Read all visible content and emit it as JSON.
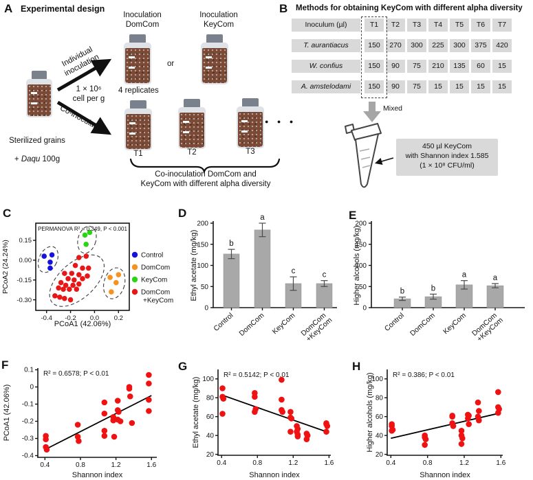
{
  "panels": {
    "a": {
      "label": "A",
      "title": "Experimental design",
      "inoc_domcom": "Inoculation\nDomCom",
      "inoc_keycom": "Inoculation\nKeyCom",
      "or_label": "or",
      "replicates": "4 replicates",
      "individual_arrow_label": "Individual\ninoculation",
      "dose_label": "1 × 10⁶\ncell per g",
      "co_arrow_label": "Co-inoculation",
      "sterilized_line1": "Sterilized grains",
      "sterilized_prefix": "+ ",
      "sterilized_daqu": "Daqu",
      "sterilized_suffix": " 100g",
      "jar_labels": [
        "T1",
        "T2",
        "T3"
      ],
      "ellipsis": "● ● ●",
      "brace_caption": "Co-inoculation DomCom and\nKeyCom with different alpha diversity"
    },
    "b": {
      "label": "B",
      "title": "Methods for obtaining KeyCom with different alpha diversity",
      "table": {
        "header": [
          "Inoculum (µl)",
          "T1",
          "T2",
          "T3",
          "T4",
          "T5",
          "T6",
          "T7"
        ],
        "rows": [
          {
            "name": "T. aurantiacus",
            "values": [
              "150",
              "270",
              "300",
              "225",
              "300",
              "375",
              "420"
            ]
          },
          {
            "name": "W. confius",
            "values": [
              "150",
              "90",
              "75",
              "210",
              "135",
              "60",
              "15"
            ]
          },
          {
            "name": "A. amstelodami",
            "values": [
              "150",
              "90",
              "75",
              "15",
              "15",
              "15",
              "15"
            ]
          }
        ]
      },
      "mixed_label": "Mixed",
      "note_lines": [
        "450 µl KeyCom",
        "with Shannon index 1.585",
        "(1 × 10⁸ CFU/ml)"
      ]
    },
    "c": {
      "label": "C"
    },
    "d": {
      "label": "D"
    },
    "e": {
      "label": "E"
    },
    "f": {
      "label": "F"
    },
    "g": {
      "label": "G"
    },
    "h": {
      "label": "H"
    }
  },
  "colors": {
    "control_blue": "#1412dc",
    "domcom_orange": "#f6921e",
    "keycom_green": "#2bd415",
    "mix_red": "#e81717",
    "bar_gray": "#a8a8a8",
    "table_gray": "#d9d9d9"
  },
  "chart_data": [
    {
      "id": "c",
      "type": "grouped-scatter",
      "annotation": "PERMANOVA R² = 0.349, P < 0.001",
      "xlabel": "PCoA1 (42.06%)",
      "ylabel": "PCoA2 (24.24%)",
      "xlim": [
        -0.49,
        0.29
      ],
      "ylim": [
        -0.38,
        0.28
      ],
      "xticks": [
        "-0.4",
        "-0.2",
        "0.0",
        "0.2"
      ],
      "yticks": [
        "0.15",
        "0.00",
        "-0.15",
        "-0.30"
      ],
      "grid": false,
      "legend_position": "right",
      "groups": [
        {
          "name": [
            "Control"
          ],
          "color": "#1412dc",
          "points": [
            [
              -0.42,
              0.03
            ],
            [
              -0.355,
              0.04
            ],
            [
              -0.37,
              -0.015
            ],
            [
              -0.37,
              -0.06
            ]
          ],
          "ellipse": [
            -0.387,
            0.005,
            13,
            20,
            25
          ]
        },
        {
          "name": [
            "DomCom"
          ],
          "color": "#f6921e",
          "points": [
            [
              0.13,
              -0.13
            ],
            [
              0.2,
              -0.11
            ],
            [
              0.18,
              -0.17
            ],
            [
              0.14,
              -0.24
            ]
          ],
          "ellipse": [
            0.165,
            -0.175,
            15,
            23,
            15
          ]
        },
        {
          "name": [
            "KeyCom"
          ],
          "color": "#2bd415",
          "points": [
            [
              -0.08,
              0.19
            ],
            [
              -0.04,
              0.21
            ],
            [
              -0.07,
              0.12
            ]
          ],
          "ellipse": [
            -0.063,
            0.155,
            13,
            20,
            15
          ]
        },
        {
          "name": [
            "DomCom",
            "+KeyCom"
          ],
          "color": "#e81717",
          "points": [
            [
              -0.13,
              0.02
            ],
            [
              -0.07,
              0.03
            ],
            [
              -0.16,
              -0.04
            ],
            [
              -0.1,
              -0.06
            ],
            [
              -0.05,
              -0.06
            ],
            [
              -0.25,
              -0.1
            ],
            [
              -0.19,
              -0.1
            ],
            [
              -0.13,
              -0.11
            ],
            [
              -0.06,
              -0.12
            ],
            [
              -0.22,
              -0.14
            ],
            [
              -0.17,
              -0.15
            ],
            [
              -0.1,
              -0.14
            ],
            [
              -0.28,
              -0.17
            ],
            [
              -0.24,
              -0.19
            ],
            [
              -0.18,
              -0.19
            ],
            [
              -0.13,
              -0.18
            ],
            [
              -0.3,
              -0.21
            ],
            [
              -0.26,
              -0.22
            ],
            [
              -0.21,
              -0.22
            ],
            [
              -0.15,
              -0.22
            ],
            [
              -0.33,
              -0.27
            ],
            [
              -0.29,
              -0.28
            ],
            [
              -0.25,
              -0.29
            ],
            [
              -0.2,
              -0.3
            ]
          ],
          "ellipse": [
            -0.147,
            -0.155,
            48,
            26,
            -42
          ]
        }
      ]
    },
    {
      "id": "d",
      "type": "bar",
      "ylabel": "Ethyl acetate (mg/kg)",
      "ylim": [
        0,
        200
      ],
      "yticks": [
        0,
        50,
        100,
        150,
        200
      ],
      "categories": [
        [
          "Control"
        ],
        [
          "DomCom"
        ],
        [
          "KeyCom"
        ],
        [
          "DomCom",
          "+KeyCom"
        ]
      ],
      "values": [
        127,
        184,
        57,
        57
      ],
      "errors": [
        11,
        16,
        16,
        7
      ],
      "letters": [
        "b",
        "a",
        "c",
        "c"
      ],
      "bar_color": "#a8a8a8"
    },
    {
      "id": "e",
      "type": "bar",
      "ylabel": "Higher alcohols (mg/kg)",
      "ylim": [
        0,
        200
      ],
      "yticks": [
        0,
        50,
        100,
        150,
        200
      ],
      "categories": [
        [
          "Control"
        ],
        [
          "DomCom"
        ],
        [
          "KeyCom"
        ],
        [
          "DomCom",
          "+KeyCom"
        ]
      ],
      "values": [
        21,
        26,
        54,
        52
      ],
      "errors": [
        4,
        6,
        10,
        5
      ],
      "letters": [
        "b",
        "b",
        "a",
        "a"
      ],
      "bar_color": "#a8a8a8"
    },
    {
      "id": "f",
      "type": "scatter",
      "annotation": "R² = 0.6578; P < 0.01",
      "xlabel": "Shannon index",
      "ylabel": "PCoA1 (42.06%)",
      "xlim": [
        0.32,
        1.66
      ],
      "ylim": [
        -0.41,
        0.11
      ],
      "xticks": [
        "0.4",
        "0.8",
        "1.2",
        "1.6"
      ],
      "yticks": [
        "0.1",
        "0",
        "-0.1",
        "-0.2",
        "-0.3",
        "-0.4"
      ],
      "point_color": "#ee1212",
      "points": [
        [
          0.41,
          -0.285
        ],
        [
          0.41,
          -0.305
        ],
        [
          0.41,
          -0.35
        ],
        [
          0.42,
          -0.365
        ],
        [
          0.77,
          -0.22
        ],
        [
          0.77,
          -0.29
        ],
        [
          0.78,
          -0.315
        ],
        [
          1.07,
          -0.09
        ],
        [
          1.07,
          -0.155
        ],
        [
          1.07,
          -0.255
        ],
        [
          1.07,
          -0.285
        ],
        [
          1.17,
          -0.175
        ],
        [
          1.17,
          -0.195
        ],
        [
          1.18,
          -0.29
        ],
        [
          1.22,
          -0.08
        ],
        [
          1.22,
          -0.135
        ],
        [
          1.23,
          -0.145
        ],
        [
          1.22,
          -0.19
        ],
        [
          1.25,
          -0.2
        ],
        [
          1.35,
          0.0
        ],
        [
          1.35,
          -0.01
        ],
        [
          1.36,
          -0.055
        ],
        [
          1.38,
          -0.21
        ],
        [
          1.57,
          0.07
        ],
        [
          1.57,
          0.02
        ],
        [
          1.57,
          -0.075
        ],
        [
          1.57,
          -0.14
        ]
      ],
      "trend": [
        [
          0.4,
          -0.365
        ],
        [
          1.6,
          -0.05
        ]
      ]
    },
    {
      "id": "g",
      "type": "scatter",
      "annotation": "R² = 0.5142; P < 0.01",
      "xlabel": "Shannon index",
      "ylabel": "Ethyl acetate (mg/kg)",
      "xlim": [
        0.36,
        1.62
      ],
      "ylim": [
        19,
        110
      ],
      "xticks": [
        "0.4",
        "0.8",
        "1.2",
        "1.6"
      ],
      "yticks": [
        20,
        40,
        60,
        80,
        100
      ],
      "point_color": "#ee1212",
      "points": [
        [
          0.41,
          90
        ],
        [
          0.41,
          81
        ],
        [
          0.42,
          79
        ],
        [
          0.41,
          63
        ],
        [
          0.77,
          85
        ],
        [
          0.77,
          81
        ],
        [
          0.78,
          68
        ],
        [
          0.77,
          65
        ],
        [
          1.07,
          99
        ],
        [
          1.07,
          78
        ],
        [
          1.07,
          67
        ],
        [
          1.08,
          65
        ],
        [
          1.17,
          65
        ],
        [
          1.17,
          59
        ],
        [
          1.18,
          58
        ],
        [
          1.17,
          44
        ],
        [
          1.24,
          50
        ],
        [
          1.25,
          47
        ],
        [
          1.24,
          44
        ],
        [
          1.25,
          41
        ],
        [
          1.25,
          39
        ],
        [
          1.35,
          42
        ],
        [
          1.36,
          40
        ],
        [
          1.35,
          36
        ],
        [
          1.57,
          53
        ],
        [
          1.57,
          52
        ],
        [
          1.58,
          50
        ],
        [
          1.57,
          44
        ]
      ],
      "trend": [
        [
          0.4,
          83
        ],
        [
          1.6,
          43
        ]
      ]
    },
    {
      "id": "h",
      "type": "scatter",
      "annotation": "R² = 0.386; P < 0.01",
      "xlabel": "Shannon index",
      "ylabel": "Higher alcohols (mg/kg)",
      "xlim": [
        0.36,
        1.62
      ],
      "ylim": [
        19,
        110
      ],
      "xticks": [
        "0.4",
        "0.8",
        "1.2",
        "1.6"
      ],
      "yticks": [
        20,
        40,
        60,
        80,
        100
      ],
      "point_color": "#ee1212",
      "points": [
        [
          0.41,
          52
        ],
        [
          0.41,
          50
        ],
        [
          0.42,
          46
        ],
        [
          0.41,
          45
        ],
        [
          0.77,
          40
        ],
        [
          0.77,
          38
        ],
        [
          0.78,
          36
        ],
        [
          0.77,
          30
        ],
        [
          1.07,
          61
        ],
        [
          1.07,
          60
        ],
        [
          1.07,
          53
        ],
        [
          1.08,
          50
        ],
        [
          1.17,
          45
        ],
        [
          1.17,
          40
        ],
        [
          1.18,
          37
        ],
        [
          1.17,
          31
        ],
        [
          1.24,
          62
        ],
        [
          1.25,
          61
        ],
        [
          1.24,
          58
        ],
        [
          1.25,
          52
        ],
        [
          1.35,
          75
        ],
        [
          1.36,
          66
        ],
        [
          1.35,
          60
        ],
        [
          1.36,
          56
        ],
        [
          1.57,
          86
        ],
        [
          1.57,
          70
        ],
        [
          1.58,
          68
        ],
        [
          1.57,
          64
        ]
      ],
      "trend": [
        [
          0.4,
          37
        ],
        [
          1.6,
          64
        ]
      ]
    }
  ]
}
